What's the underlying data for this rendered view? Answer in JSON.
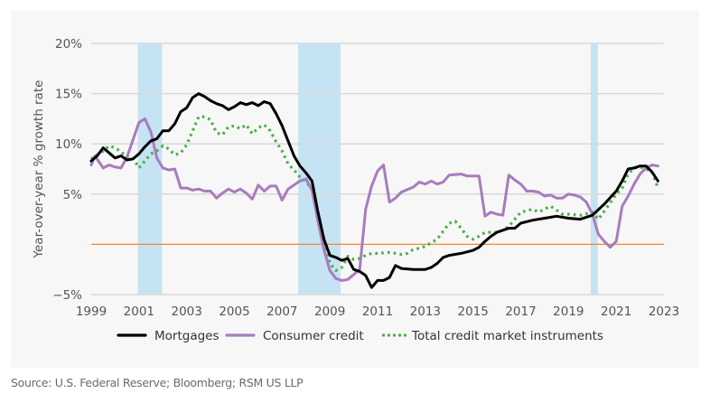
{
  "chart_data": {
    "type": "line",
    "title": "",
    "xlabel": "",
    "ylabel": "Year-over-year % growth rate",
    "xlim": [
      1999,
      2023
    ],
    "ylim": [
      -5,
      20
    ],
    "x_ticks": [
      "1999",
      "2001",
      "2003",
      "2005",
      "2007",
      "2009",
      "2011",
      "2013",
      "2015",
      "2017",
      "2019",
      "2021",
      "2023"
    ],
    "x_tick_values": [
      1999,
      2001,
      2003,
      2005,
      2007,
      2009,
      2011,
      2013,
      2015,
      2017,
      2019,
      2021,
      2023
    ],
    "y_ticks": [
      {
        "value": 20,
        "label": "20%"
      },
      {
        "value": 15,
        "label": "15%"
      },
      {
        "value": 10,
        "label": "10%"
      },
      {
        "value": 5,
        "label": "5%"
      },
      {
        "value": 0,
        "label": ""
      },
      {
        "value": -5,
        "label": "−5%"
      }
    ],
    "grid": true,
    "zero_line_color": "#f08a2e",
    "recessions": [
      {
        "start": 2000.95,
        "end": 2001.97
      },
      {
        "start": 2007.67,
        "end": 2009.45
      },
      {
        "start": 2019.93,
        "end": 2020.23
      }
    ],
    "recession_color": "#c6e3f3",
    "legend_position": "bottom",
    "series": [
      {
        "name": "Mortgages",
        "color": "#000000",
        "style": "solid",
        "points": [
          [
            1999.0,
            8.3
          ],
          [
            1999.25,
            8.8
          ],
          [
            1999.5,
            9.6
          ],
          [
            1999.75,
            9.1
          ],
          [
            2000.0,
            8.6
          ],
          [
            2000.25,
            8.8
          ],
          [
            2000.5,
            8.4
          ],
          [
            2000.75,
            8.5
          ],
          [
            2001.0,
            9.0
          ],
          [
            2001.25,
            9.7
          ],
          [
            2001.5,
            10.3
          ],
          [
            2001.75,
            10.5
          ],
          [
            2002.0,
            11.3
          ],
          [
            2002.25,
            11.3
          ],
          [
            2002.5,
            12.0
          ],
          [
            2002.75,
            13.2
          ],
          [
            2003.0,
            13.6
          ],
          [
            2003.25,
            14.6
          ],
          [
            2003.5,
            15.0
          ],
          [
            2003.75,
            14.7
          ],
          [
            2004.0,
            14.3
          ],
          [
            2004.25,
            14.0
          ],
          [
            2004.5,
            13.8
          ],
          [
            2004.75,
            13.4
          ],
          [
            2005.0,
            13.7
          ],
          [
            2005.25,
            14.1
          ],
          [
            2005.5,
            13.9
          ],
          [
            2005.75,
            14.1
          ],
          [
            2006.0,
            13.8
          ],
          [
            2006.25,
            14.2
          ],
          [
            2006.5,
            14.0
          ],
          [
            2006.75,
            13.0
          ],
          [
            2007.0,
            11.8
          ],
          [
            2007.25,
            10.3
          ],
          [
            2007.5,
            8.8
          ],
          [
            2007.75,
            7.8
          ],
          [
            2008.0,
            7.1
          ],
          [
            2008.25,
            6.3
          ],
          [
            2008.5,
            3.2
          ],
          [
            2008.75,
            0.5
          ],
          [
            2009.0,
            -1.1
          ],
          [
            2009.25,
            -1.3
          ],
          [
            2009.5,
            -1.6
          ],
          [
            2009.75,
            -1.4
          ],
          [
            2010.0,
            -2.5
          ],
          [
            2010.25,
            -2.7
          ],
          [
            2010.5,
            -3.1
          ],
          [
            2010.75,
            -4.3
          ],
          [
            2011.0,
            -3.6
          ],
          [
            2011.25,
            -3.6
          ],
          [
            2011.5,
            -3.3
          ],
          [
            2011.75,
            -2.1
          ],
          [
            2012.0,
            -2.4
          ],
          [
            2012.5,
            -2.5
          ],
          [
            2013.0,
            -2.5
          ],
          [
            2013.25,
            -2.3
          ],
          [
            2013.5,
            -1.9
          ],
          [
            2013.75,
            -1.3
          ],
          [
            2014.0,
            -1.1
          ],
          [
            2014.5,
            -0.9
          ],
          [
            2015.0,
            -0.6
          ],
          [
            2015.25,
            -0.3
          ],
          [
            2015.5,
            0.3
          ],
          [
            2015.75,
            0.8
          ],
          [
            2016.0,
            1.2
          ],
          [
            2016.5,
            1.6
          ],
          [
            2016.75,
            1.6
          ],
          [
            2017.0,
            2.1
          ],
          [
            2017.5,
            2.4
          ],
          [
            2018.0,
            2.6
          ],
          [
            2018.5,
            2.8
          ],
          [
            2019.0,
            2.6
          ],
          [
            2019.5,
            2.5
          ],
          [
            2020.0,
            2.9
          ],
          [
            2020.5,
            4.0
          ],
          [
            2021.0,
            5.3
          ],
          [
            2021.25,
            6.3
          ],
          [
            2021.5,
            7.5
          ],
          [
            2021.75,
            7.6
          ],
          [
            2022.0,
            7.8
          ],
          [
            2022.25,
            7.8
          ],
          [
            2022.5,
            7.2
          ],
          [
            2022.75,
            6.3
          ]
        ]
      },
      {
        "name": "Consumer credit",
        "color": "#a97bbd",
        "style": "solid",
        "points": [
          [
            1999.0,
            7.9
          ],
          [
            1999.15,
            8.8
          ],
          [
            1999.5,
            7.6
          ],
          [
            1999.75,
            7.9
          ],
          [
            2000.0,
            7.7
          ],
          [
            2000.25,
            7.6
          ],
          [
            2000.5,
            8.7
          ],
          [
            2000.75,
            10.4
          ],
          [
            2001.0,
            12.1
          ],
          [
            2001.25,
            12.5
          ],
          [
            2001.5,
            11.2
          ],
          [
            2001.75,
            8.6
          ],
          [
            2002.0,
            7.6
          ],
          [
            2002.25,
            7.4
          ],
          [
            2002.5,
            7.5
          ],
          [
            2002.75,
            5.6
          ],
          [
            2003.0,
            5.6
          ],
          [
            2003.25,
            5.4
          ],
          [
            2003.5,
            5.5
          ],
          [
            2003.75,
            5.3
          ],
          [
            2004.0,
            5.3
          ],
          [
            2004.25,
            4.6
          ],
          [
            2004.5,
            5.1
          ],
          [
            2004.75,
            5.5
          ],
          [
            2005.0,
            5.2
          ],
          [
            2005.25,
            5.5
          ],
          [
            2005.5,
            5.1
          ],
          [
            2005.75,
            4.5
          ],
          [
            2006.0,
            5.9
          ],
          [
            2006.25,
            5.3
          ],
          [
            2006.5,
            5.8
          ],
          [
            2006.75,
            5.8
          ],
          [
            2007.0,
            4.4
          ],
          [
            2007.25,
            5.5
          ],
          [
            2007.5,
            5.9
          ],
          [
            2007.75,
            6.3
          ],
          [
            2008.0,
            6.5
          ],
          [
            2008.25,
            5.4
          ],
          [
            2008.5,
            2.3
          ],
          [
            2008.75,
            -0.5
          ],
          [
            2009.0,
            -2.6
          ],
          [
            2009.25,
            -3.4
          ],
          [
            2009.5,
            -3.6
          ],
          [
            2009.75,
            -3.5
          ],
          [
            2010.0,
            -3.0
          ],
          [
            2010.25,
            -2.5
          ],
          [
            2010.5,
            3.5
          ],
          [
            2010.75,
            5.8
          ],
          [
            2011.0,
            7.3
          ],
          [
            2011.25,
            7.9
          ],
          [
            2011.5,
            4.2
          ],
          [
            2011.75,
            4.6
          ],
          [
            2012.0,
            5.2
          ],
          [
            2012.5,
            5.7
          ],
          [
            2012.75,
            6.2
          ],
          [
            2013.0,
            6.0
          ],
          [
            2013.25,
            6.3
          ],
          [
            2013.5,
            6.0
          ],
          [
            2013.75,
            6.2
          ],
          [
            2014.0,
            6.9
          ],
          [
            2014.5,
            7.0
          ],
          [
            2014.75,
            6.8
          ],
          [
            2015.0,
            6.8
          ],
          [
            2015.25,
            6.8
          ],
          [
            2015.5,
            2.8
          ],
          [
            2015.75,
            3.2
          ],
          [
            2016.0,
            3.0
          ],
          [
            2016.25,
            2.9
          ],
          [
            2016.5,
            6.9
          ],
          [
            2016.75,
            6.4
          ],
          [
            2017.0,
            6.0
          ],
          [
            2017.25,
            5.3
          ],
          [
            2017.5,
            5.3
          ],
          [
            2017.75,
            5.2
          ],
          [
            2018.0,
            4.8
          ],
          [
            2018.25,
            4.9
          ],
          [
            2018.5,
            4.6
          ],
          [
            2018.75,
            4.6
          ],
          [
            2019.0,
            5.0
          ],
          [
            2019.25,
            4.9
          ],
          [
            2019.5,
            4.7
          ],
          [
            2019.75,
            4.2
          ],
          [
            2020.0,
            3.0
          ],
          [
            2020.25,
            1.0
          ],
          [
            2020.5,
            0.3
          ],
          [
            2020.75,
            -0.3
          ],
          [
            2021.0,
            0.3
          ],
          [
            2021.25,
            3.8
          ],
          [
            2021.5,
            4.8
          ],
          [
            2021.75,
            6.0
          ],
          [
            2022.0,
            7.0
          ],
          [
            2022.25,
            7.6
          ],
          [
            2022.5,
            7.9
          ],
          [
            2022.75,
            7.8
          ]
        ]
      },
      {
        "name": "Total credit market instruments",
        "color": "#4cae48",
        "style": "dotted",
        "points": [
          [
            1999.0,
            8.5
          ],
          [
            1999.25,
            8.9
          ],
          [
            1999.5,
            9.3
          ],
          [
            1999.75,
            9.8
          ],
          [
            2000.0,
            9.6
          ],
          [
            2000.25,
            9.2
          ],
          [
            2000.5,
            8.7
          ],
          [
            2000.75,
            8.6
          ],
          [
            2001.0,
            7.6
          ],
          [
            2001.25,
            8.3
          ],
          [
            2001.5,
            9.0
          ],
          [
            2001.75,
            9.3
          ],
          [
            2002.0,
            9.8
          ],
          [
            2002.25,
            9.5
          ],
          [
            2002.5,
            8.9
          ],
          [
            2002.75,
            9.1
          ],
          [
            2003.0,
            9.9
          ],
          [
            2003.25,
            11.3
          ],
          [
            2003.5,
            12.7
          ],
          [
            2003.75,
            12.7
          ],
          [
            2004.0,
            12.4
          ],
          [
            2004.25,
            11.1
          ],
          [
            2004.5,
            10.9
          ],
          [
            2004.75,
            11.7
          ],
          [
            2005.0,
            11.8
          ],
          [
            2005.25,
            11.5
          ],
          [
            2005.5,
            11.9
          ],
          [
            2005.75,
            11.0
          ],
          [
            2006.0,
            11.6
          ],
          [
            2006.25,
            11.9
          ],
          [
            2006.5,
            11.3
          ],
          [
            2006.75,
            10.2
          ],
          [
            2007.0,
            9.3
          ],
          [
            2007.25,
            8.0
          ],
          [
            2007.5,
            7.4
          ],
          [
            2007.75,
            6.7
          ],
          [
            2008.0,
            6.3
          ],
          [
            2008.25,
            5.4
          ],
          [
            2008.5,
            3.2
          ],
          [
            2008.75,
            0.6
          ],
          [
            2009.0,
            -1.9
          ],
          [
            2009.25,
            -2.6
          ],
          [
            2009.5,
            -2.3
          ],
          [
            2009.75,
            -1.2
          ],
          [
            2010.0,
            -1.5
          ],
          [
            2010.25,
            -1.4
          ],
          [
            2010.5,
            -1.1
          ],
          [
            2010.75,
            -0.9
          ],
          [
            2011.0,
            -0.9
          ],
          [
            2011.5,
            -0.8
          ],
          [
            2012.0,
            -1.0
          ],
          [
            2012.25,
            -0.9
          ],
          [
            2012.5,
            -0.5
          ],
          [
            2012.75,
            -0.4
          ],
          [
            2013.0,
            -0.2
          ],
          [
            2013.5,
            0.5
          ],
          [
            2013.75,
            1.3
          ],
          [
            2014.0,
            2.1
          ],
          [
            2014.25,
            2.3
          ],
          [
            2014.5,
            1.6
          ],
          [
            2014.75,
            0.8
          ],
          [
            2015.0,
            0.5
          ],
          [
            2015.25,
            0.8
          ],
          [
            2015.5,
            1.2
          ],
          [
            2016.0,
            1.2
          ],
          [
            2016.25,
            1.4
          ],
          [
            2016.5,
            1.8
          ],
          [
            2016.75,
            2.5
          ],
          [
            2017.0,
            3.2
          ],
          [
            2017.5,
            3.5
          ],
          [
            2017.75,
            3.2
          ],
          [
            2018.0,
            3.5
          ],
          [
            2018.25,
            3.8
          ],
          [
            2018.5,
            3.4
          ],
          [
            2018.75,
            3.0
          ],
          [
            2019.0,
            3.0
          ],
          [
            2019.5,
            2.9
          ],
          [
            2020.0,
            3.2
          ],
          [
            2020.25,
            2.5
          ],
          [
            2020.5,
            3.3
          ],
          [
            2021.0,
            5.0
          ],
          [
            2021.25,
            5.6
          ],
          [
            2021.5,
            7.0
          ],
          [
            2021.75,
            7.6
          ],
          [
            2022.0,
            7.7
          ],
          [
            2022.25,
            7.5
          ],
          [
            2022.5,
            7.2
          ],
          [
            2022.75,
            5.6
          ]
        ]
      }
    ]
  },
  "footer": {
    "source": "Source: U.S. Federal Reserve; Bloomberg; RSM US LLP"
  }
}
